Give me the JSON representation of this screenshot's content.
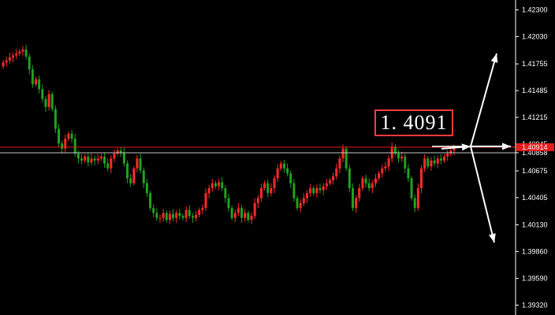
{
  "chart_data": {
    "type": "candlestick",
    "price_axis": {
      "tick_labels": [
        "1.42300",
        "1.42030",
        "1.41755",
        "1.41485",
        "1.41215",
        "1.40945",
        "1.40858",
        "1.40675",
        "1.40405",
        "1.40130",
        "1.39860",
        "1.39590",
        "1.39320"
      ],
      "range": [
        1.3922,
        1.424
      ]
    },
    "current_price_tag": "1.40914",
    "current_price": 1.40914,
    "reference_line_price": 1.40858,
    "callout_label": "1. 4091",
    "colors": {
      "bull": "#ff2a2a",
      "bear": "#1fa31f",
      "current_line": "#e81b1b",
      "reference_line": "#c8c8c8",
      "axis": "#ffffff",
      "arrows": "#ffffff",
      "callout_border": "#ff3b3b"
    },
    "series_closes": [
      1.4177,
      1.4179,
      1.4182,
      1.4184,
      1.4186,
      1.4188,
      1.419,
      1.4183,
      1.417,
      1.4155,
      1.416,
      1.415,
      1.414,
      1.4132,
      1.4145,
      1.413,
      1.411,
      1.4095,
      1.409,
      1.41,
      1.4105,
      1.41,
      1.4085,
      1.408,
      1.4078,
      1.4082,
      1.4076,
      1.408,
      1.4078,
      1.408,
      1.4082,
      1.4075,
      1.407,
      1.408,
      1.4085,
      1.4088,
      1.4086,
      1.4075,
      1.406,
      1.4055,
      1.407,
      1.408,
      1.4068,
      1.4055,
      1.4045,
      1.403,
      1.4025,
      1.402,
      1.402,
      1.4025,
      1.4018,
      1.4024,
      1.402,
      1.4025,
      1.4022,
      1.402,
      1.4028,
      1.4022,
      1.402,
      1.4023,
      1.4028,
      1.403,
      1.4045,
      1.405,
      1.4055,
      1.4052,
      1.4056,
      1.405,
      1.404,
      1.403,
      1.402,
      1.4025,
      1.403,
      1.402,
      1.4025,
      1.4018,
      1.4022,
      1.4035,
      1.404,
      1.405,
      1.4055,
      1.4045,
      1.405,
      1.406,
      1.407,
      1.4075,
      1.407,
      1.4065,
      1.4055,
      1.404,
      1.403,
      1.4035,
      1.404,
      1.4045,
      1.405,
      1.4045,
      1.405,
      1.4048,
      1.4052,
      1.4055,
      1.4058,
      1.4062,
      1.407,
      1.408,
      1.409,
      1.407,
      1.405,
      1.403,
      1.404,
      1.405,
      1.406,
      1.4055,
      1.405,
      1.4055,
      1.406,
      1.4065,
      1.407,
      1.4072,
      1.408,
      1.4092,
      1.4085,
      1.408,
      1.4082,
      1.407,
      1.406,
      1.404,
      1.403,
      1.405,
      1.407,
      1.408,
      1.4072,
      1.4078,
      1.4075,
      1.408,
      1.4078,
      1.4082,
      1.4085,
      1.4088,
      1.4091
    ]
  }
}
